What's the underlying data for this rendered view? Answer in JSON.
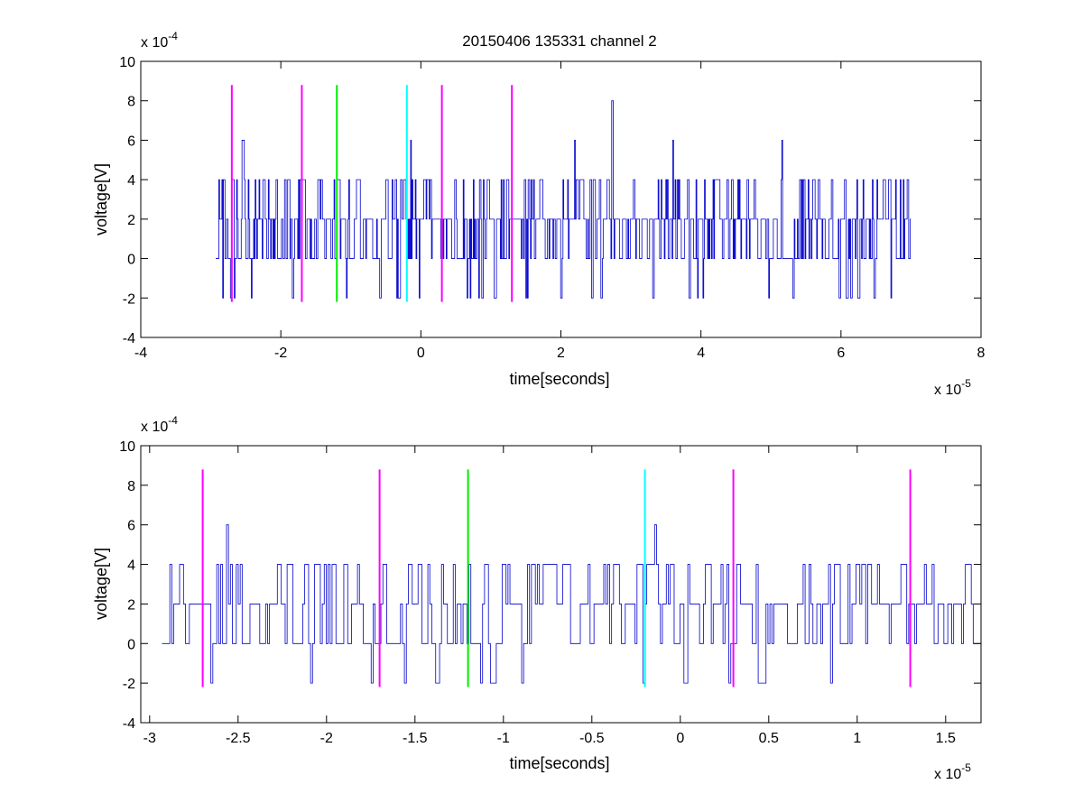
{
  "title": "20150406 135331 channel 2",
  "colors": {
    "signal": "#0000cc",
    "magenta": "#ff00ff",
    "green": "#00ee00",
    "cyan": "#00ffff",
    "axes": "#000000"
  },
  "chart_data": [
    {
      "type": "line",
      "title": "20150406 135331 channel 2",
      "xlabel": "time[seconds]",
      "ylabel": "voltage[V]",
      "x_exponent_label": "x 10",
      "x_exponent": "-5",
      "y_exponent_label": "x 10",
      "y_exponent": "-4",
      "xlim": [
        -4,
        8
      ],
      "ylim": [
        -4,
        10
      ],
      "xticks": [
        -4,
        -2,
        0,
        2,
        4,
        6,
        8
      ],
      "yticks": [
        -4,
        -2,
        0,
        2,
        4,
        6,
        8,
        10
      ],
      "xtick_labels": [
        "-4",
        "-2",
        "0",
        "2",
        "4",
        "6",
        "8"
      ],
      "ytick_labels": [
        "-4",
        "-2",
        "0",
        "2",
        "4",
        "6",
        "8",
        "10"
      ],
      "grid": false,
      "signal": {
        "color": "#0000cc",
        "x_range": [
          -2.93,
          7.0
        ],
        "level_min": -2,
        "level_max": 4,
        "step": 2,
        "sample_count": 900,
        "spikes": [
          {
            "x": -2.55,
            "y": 6
          },
          {
            "x": -0.15,
            "y": 6
          },
          {
            "x": 2.2,
            "y": 6
          },
          {
            "x": 2.73,
            "y": 8
          },
          {
            "x": 3.6,
            "y": 6
          },
          {
            "x": 5.15,
            "y": 6
          }
        ]
      },
      "markers": [
        {
          "x": -2.7,
          "color": "magenta",
          "y0": -2.2,
          "y1": 8.8
        },
        {
          "x": -1.7,
          "color": "magenta",
          "y0": -2.2,
          "y1": 8.8
        },
        {
          "x": -1.2,
          "color": "green",
          "y0": -2.2,
          "y1": 8.8
        },
        {
          "x": -0.2,
          "color": "cyan",
          "y0": -2.2,
          "y1": 8.8
        },
        {
          "x": 0.3,
          "color": "magenta",
          "y0": -2.2,
          "y1": 8.8
        },
        {
          "x": 1.3,
          "color": "magenta",
          "y0": -2.2,
          "y1": 8.8
        }
      ]
    },
    {
      "type": "line",
      "title": "",
      "xlabel": "time[seconds]",
      "ylabel": "voltage[V]",
      "x_exponent_label": "x 10",
      "x_exponent": "-5",
      "y_exponent_label": "x 10",
      "y_exponent": "-4",
      "xlim": [
        -3.05,
        1.7
      ],
      "ylim": [
        -4,
        10
      ],
      "xticks": [
        -3,
        -2.5,
        -2,
        -1.5,
        -1,
        -0.5,
        0,
        0.5,
        1,
        1.5
      ],
      "yticks": [
        -4,
        -2,
        0,
        2,
        4,
        6,
        8,
        10
      ],
      "xtick_labels": [
        "-3",
        "-2.5",
        "-2",
        "-1.5",
        "-1",
        "-0.5",
        "0",
        "0.5",
        "1",
        "1.5"
      ],
      "ytick_labels": [
        "-4",
        "-2",
        "0",
        "2",
        "4",
        "6",
        "8",
        "10"
      ],
      "grid": false,
      "signal": {
        "color": "#0000cc",
        "x_range": [
          -2.93,
          1.7
        ],
        "level_min": -2,
        "level_max": 4,
        "step": 2,
        "sample_count": 420,
        "spikes": [
          {
            "x": -2.57,
            "y": 6
          },
          {
            "x": -0.15,
            "y": 6
          }
        ]
      },
      "markers": [
        {
          "x": -2.7,
          "color": "magenta",
          "y0": -2.2,
          "y1": 8.8
        },
        {
          "x": -1.7,
          "color": "magenta",
          "y0": -2.2,
          "y1": 8.8
        },
        {
          "x": -1.2,
          "color": "green",
          "y0": -2.2,
          "y1": 8.8
        },
        {
          "x": -0.2,
          "color": "cyan",
          "y0": -2.2,
          "y1": 8.8
        },
        {
          "x": 0.3,
          "color": "magenta",
          "y0": -2.2,
          "y1": 8.8
        },
        {
          "x": 1.3,
          "color": "magenta",
          "y0": -2.2,
          "y1": 8.8
        }
      ]
    }
  ]
}
